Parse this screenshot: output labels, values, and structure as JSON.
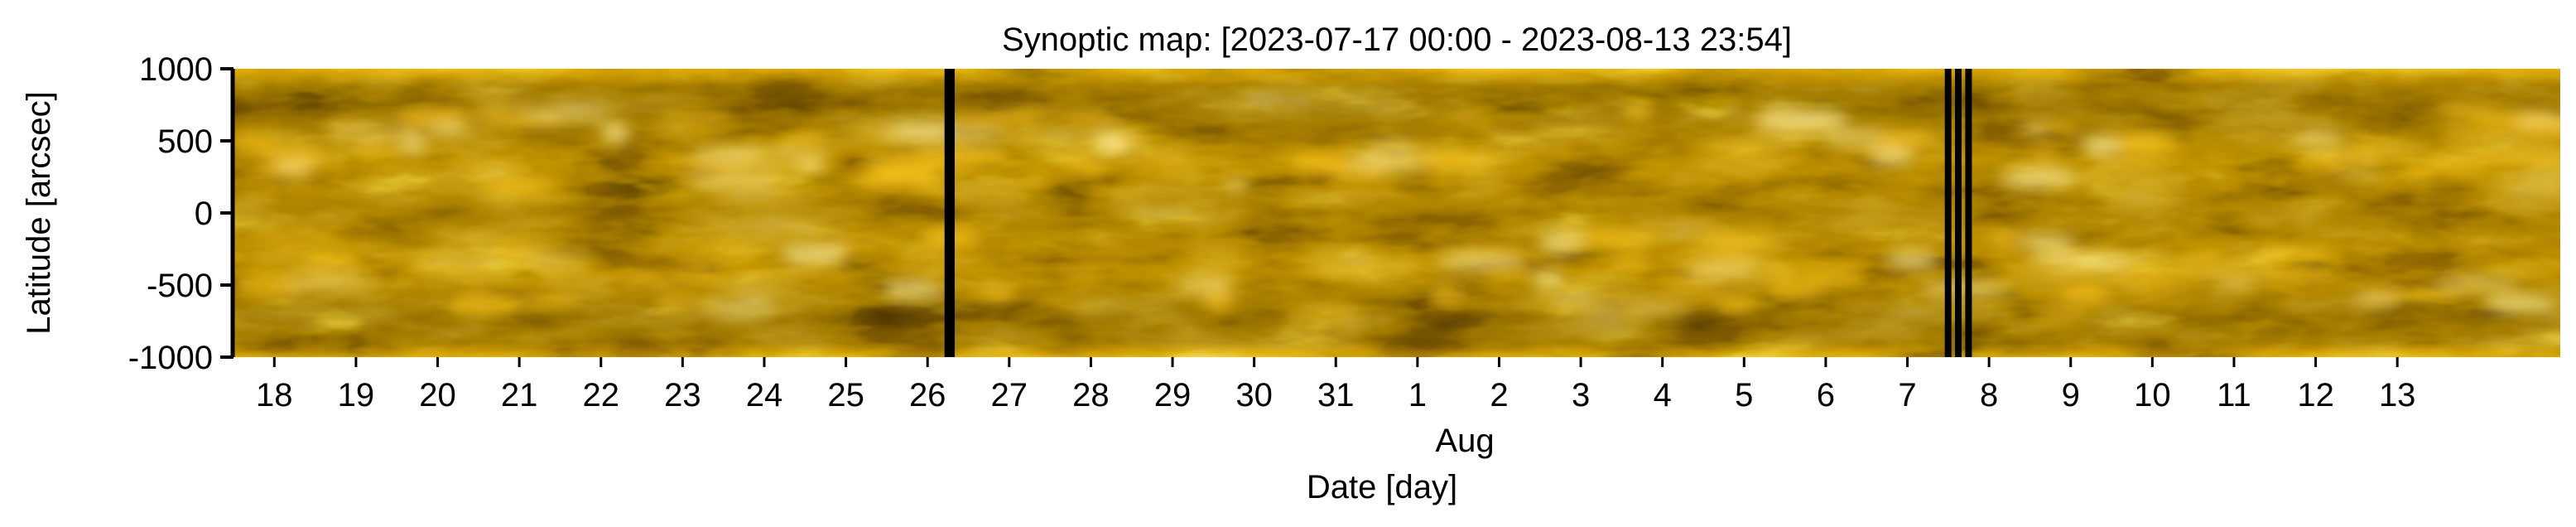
{
  "chart_data": {
    "type": "heatmap",
    "title": "Synoptic map: [2023-07-17 00:00 - 2023-08-13 23:54]",
    "xlabel": "Date [day]",
    "x_month_label": "Aug",
    "ylabel": "Latitude [arcsec]",
    "xlim": [
      "2023-07-17T12:00",
      "2023-08-14T23:54"
    ],
    "ylim": [
      -1000,
      1000
    ],
    "y_ticks": [
      1000,
      500,
      0,
      -500,
      -1000
    ],
    "y_tick_labels": [
      "1000",
      "500",
      "0",
      "-500",
      "-1000"
    ],
    "x_ticks": [
      "2023-07-18",
      "2023-07-19",
      "2023-07-20",
      "2023-07-21",
      "2023-07-22",
      "2023-07-23",
      "2023-07-24",
      "2023-07-25",
      "2023-07-26",
      "2023-07-27",
      "2023-07-28",
      "2023-07-29",
      "2023-07-30",
      "2023-07-31",
      "2023-08-01",
      "2023-08-02",
      "2023-08-03",
      "2023-08-04",
      "2023-08-05",
      "2023-08-06",
      "2023-08-07",
      "2023-08-08",
      "2023-08-09",
      "2023-08-10",
      "2023-08-11",
      "2023-08-12",
      "2023-08-13"
    ],
    "x_tick_labels": [
      "18",
      "19",
      "20",
      "21",
      "22",
      "23",
      "24",
      "25",
      "26",
      "27",
      "28",
      "29",
      "30",
      "31",
      "1",
      "2",
      "3",
      "4",
      "5",
      "6",
      "7",
      "8",
      "9",
      "10",
      "11",
      "12",
      "13"
    ],
    "data_gaps": [
      {
        "start": "2023-07-26T05:00",
        "end": "2023-07-26T08:00"
      },
      {
        "start": "2023-08-07T11:00",
        "end": "2023-08-07T12:30"
      },
      {
        "start": "2023-08-07T14:00",
        "end": "2023-08-07T15:30"
      },
      {
        "start": "2023-08-07T17:00",
        "end": "2023-08-07T18:30"
      }
    ],
    "colormap": [
      "#3a2800",
      "#6e4e00",
      "#a87800",
      "#d9a000",
      "#f5c418",
      "#ffe070",
      "#fff4c0"
    ],
    "grid": false,
    "legend": "none"
  }
}
